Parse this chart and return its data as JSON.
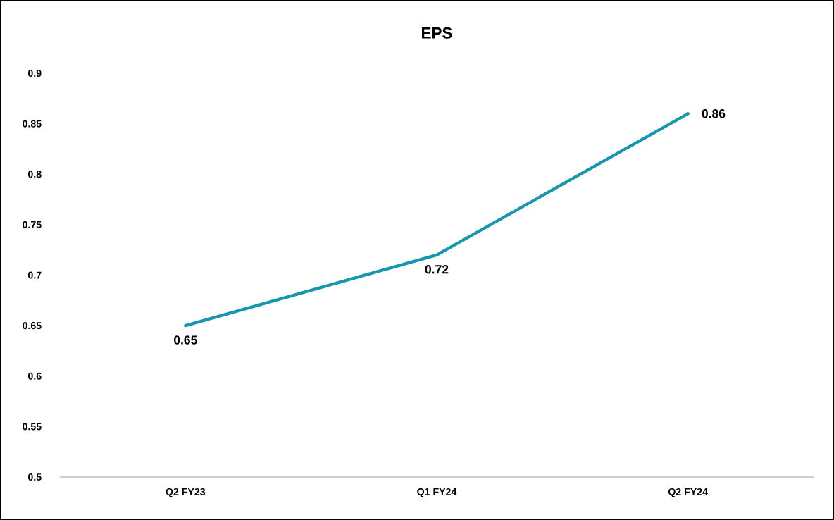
{
  "chart_data": {
    "type": "line",
    "title": "EPS",
    "categories": [
      "Q2 FY23",
      "Q1 FY24",
      "Q2 FY24"
    ],
    "values": [
      0.65,
      0.72,
      0.86
    ],
    "color": "#1896b0",
    "ylim": [
      0.5,
      0.9
    ],
    "yticks": [
      0.5,
      0.55,
      0.6,
      0.65,
      0.7,
      0.75,
      0.8,
      0.85,
      0.9
    ],
    "data_labels": true,
    "marker": "none",
    "line_style": "solid"
  }
}
